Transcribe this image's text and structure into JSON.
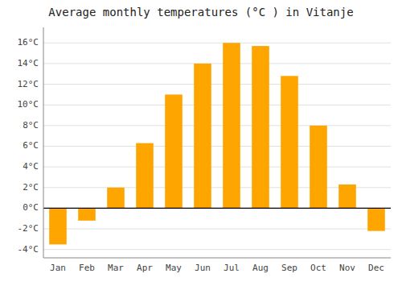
{
  "chart_data": {
    "type": "bar",
    "title": "Average monthly temperatures (°C ) in Vitanje",
    "categories": [
      "Jan",
      "Feb",
      "Mar",
      "Apr",
      "May",
      "Jun",
      "Jul",
      "Aug",
      "Sep",
      "Oct",
      "Nov",
      "Dec"
    ],
    "values": [
      -3.5,
      -1.2,
      2.0,
      6.3,
      11.0,
      14.0,
      16.0,
      15.7,
      12.8,
      8.0,
      2.3,
      -2.2
    ],
    "color": "#FFA500",
    "ylim": [
      -4.8,
      17.5
    ],
    "yticks": [
      {
        "value": -4,
        "label": "-4°C"
      },
      {
        "value": -2,
        "label": "-2°C"
      },
      {
        "value": 0,
        "label": "0°C"
      },
      {
        "value": 2,
        "label": "2°C"
      },
      {
        "value": 4,
        "label": "4°C"
      },
      {
        "value": 6,
        "label": "6°C"
      },
      {
        "value": 8,
        "label": "8°C"
      },
      {
        "value": 10,
        "label": "10°C"
      },
      {
        "value": 12,
        "label": "12°C"
      },
      {
        "value": 14,
        "label": "14°C"
      },
      {
        "value": 16,
        "label": "16°C"
      }
    ],
    "grid": true
  }
}
